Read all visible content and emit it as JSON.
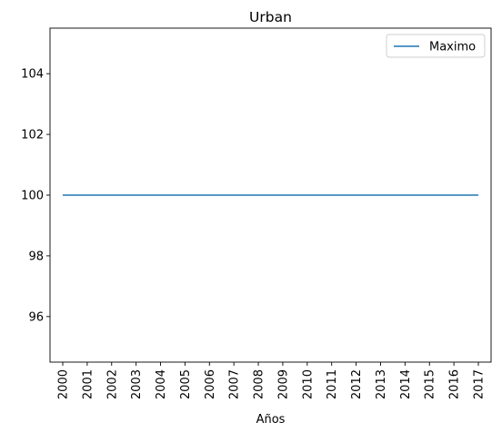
{
  "chart_data": {
    "type": "line",
    "title": "Urban",
    "xlabel": "Años",
    "ylabel": "",
    "x": [
      "2000",
      "2001",
      "2002",
      "2003",
      "2004",
      "2005",
      "2006",
      "2007",
      "2008",
      "2009",
      "2010",
      "2011",
      "2012",
      "2013",
      "2014",
      "2015",
      "2016",
      "2017"
    ],
    "series": [
      {
        "name": "Maximo",
        "color": "#1f77b4",
        "values": [
          100,
          100,
          100,
          100,
          100,
          100,
          100,
          100,
          100,
          100,
          100,
          100,
          100,
          100,
          100,
          100,
          100,
          100
        ]
      }
    ],
    "ylim": [
      94.5,
      105.5
    ],
    "yticks": [
      96,
      98,
      100,
      102,
      104
    ],
    "ytick_labels": [
      "96",
      "98",
      "100",
      "102",
      "104"
    ],
    "grid": false,
    "legend_position": "upper right"
  }
}
